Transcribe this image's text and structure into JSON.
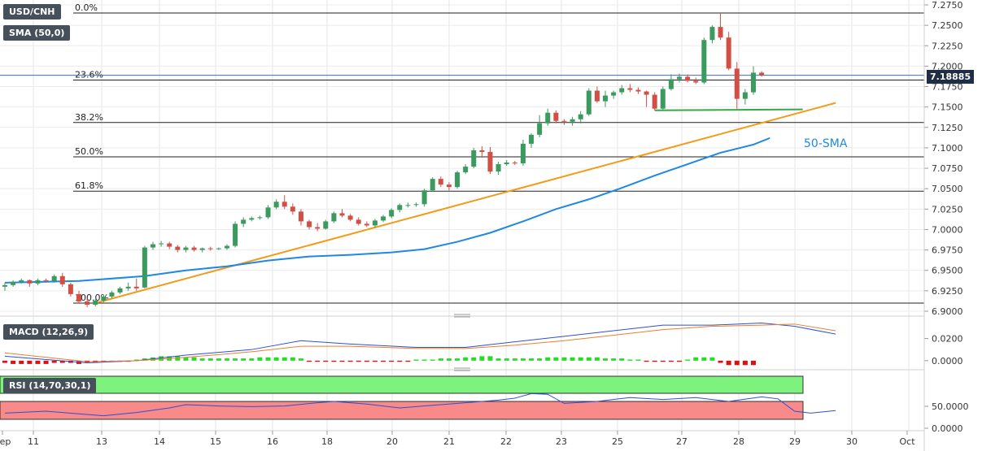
{
  "chart_data": {
    "type": "candlestick",
    "symbol": "USD/CNH",
    "indicator_label": "SMA (50,0)",
    "current_price": "7.18885",
    "annotation": "50-SMA",
    "y_ticks": [
      "7.2750",
      "7.2500",
      "7.2250",
      "7.2000",
      "7.1750",
      "7.1500",
      "7.1250",
      "7.1000",
      "7.0750",
      "7.0500",
      "7.0250",
      "7.0000",
      "6.9750",
      "6.9500",
      "6.9250",
      "6.9000"
    ],
    "ylim": [
      6.9,
      7.275
    ],
    "x_labels": [
      "Sep",
      "11",
      "13",
      "14",
      "15",
      "16",
      "18",
      "20",
      "21",
      "22",
      "23",
      "25",
      "27",
      "28",
      "29",
      "30",
      "Oct"
    ],
    "fib_levels": [
      {
        "label": "0.0%",
        "value": 7.265
      },
      {
        "label": "23.6%",
        "value": 7.183
      },
      {
        "label": "38.2%",
        "value": 7.131
      },
      {
        "label": "50.0%",
        "value": 7.089
      },
      {
        "label": "61.8%",
        "value": 7.047
      },
      {
        "label": "100.0%",
        "value": 6.91
      }
    ],
    "candles": [
      [
        6.93,
        6.935,
        6.925,
        6.932
      ],
      [
        6.932,
        6.938,
        6.93,
        6.936
      ],
      [
        6.936,
        6.94,
        6.934,
        6.938
      ],
      [
        6.938,
        6.939,
        6.93,
        6.934
      ],
      [
        6.934,
        6.94,
        6.932,
        6.938
      ],
      [
        6.938,
        6.94,
        6.935,
        6.937
      ],
      [
        6.937,
        6.945,
        6.935,
        6.943
      ],
      [
        6.943,
        6.947,
        6.93,
        6.933
      ],
      [
        6.933,
        6.935,
        6.918,
        6.921
      ],
      [
        6.921,
        6.925,
        6.91,
        6.912
      ],
      [
        6.912,
        6.916,
        6.905,
        6.908
      ],
      [
        6.908,
        6.915,
        6.906,
        6.913
      ],
      [
        6.913,
        6.92,
        6.911,
        6.918
      ],
      [
        6.918,
        6.925,
        6.916,
        6.923
      ],
      [
        6.923,
        6.93,
        6.921,
        6.928
      ],
      [
        6.928,
        6.935,
        6.925,
        6.93
      ],
      [
        6.93,
        6.94,
        6.925,
        6.928
      ],
      [
        6.929,
        6.98,
        6.928,
        6.978
      ],
      [
        6.978,
        6.985,
        6.975,
        6.982
      ],
      [
        6.982,
        6.986,
        6.979,
        6.983
      ],
      [
        6.983,
        6.985,
        6.976,
        6.979
      ],
      [
        6.979,
        6.981,
        6.972,
        6.975
      ],
      [
        6.975,
        6.98,
        6.972,
        6.978
      ],
      [
        6.978,
        6.98,
        6.973,
        6.975
      ],
      [
        6.975,
        6.978,
        6.972,
        6.977
      ],
      [
        6.977,
        6.979,
        6.974,
        6.976
      ],
      [
        6.976,
        6.978,
        6.975,
        6.977
      ],
      [
        6.977,
        6.982,
        6.975,
        6.98
      ],
      [
        6.98,
        7.01,
        6.978,
        7.007
      ],
      [
        7.007,
        7.015,
        7.003,
        7.012
      ],
      [
        7.012,
        7.016,
        7.01,
        7.014
      ],
      [
        7.014,
        7.017,
        7.012,
        7.015
      ],
      [
        7.015,
        7.03,
        7.013,
        7.027
      ],
      [
        7.027,
        7.037,
        7.025,
        7.034
      ],
      [
        7.034,
        7.042,
        7.025,
        7.028
      ],
      [
        7.028,
        7.032,
        7.018,
        7.022
      ],
      [
        7.022,
        7.025,
        7.005,
        7.01
      ],
      [
        7.01,
        7.012,
        7.0,
        7.003
      ],
      [
        7.003,
        7.008,
        6.998,
        7.001
      ],
      [
        7.001,
        7.012,
        7.0,
        7.01
      ],
      [
        7.01,
        7.022,
        7.008,
        7.02
      ],
      [
        7.02,
        7.025,
        7.015,
        7.017
      ],
      [
        7.017,
        7.019,
        7.01,
        7.012
      ],
      [
        7.012,
        7.015,
        7.005,
        7.007
      ],
      [
        7.007,
        7.01,
        7.003,
        7.005
      ],
      [
        7.005,
        7.013,
        7.002,
        7.011
      ],
      [
        7.011,
        7.018,
        7.009,
        7.016
      ],
      [
        7.016,
        7.026,
        7.014,
        7.024
      ],
      [
        7.024,
        7.032,
        7.021,
        7.03
      ],
      [
        7.03,
        7.033,
        7.027,
        7.03
      ],
      [
        7.03,
        7.033,
        7.028,
        7.031
      ],
      [
        7.031,
        7.05,
        7.028,
        7.048
      ],
      [
        7.048,
        7.064,
        7.046,
        7.062
      ],
      [
        7.062,
        7.065,
        7.052,
        7.055
      ],
      [
        7.055,
        7.058,
        7.048,
        7.052
      ],
      [
        7.052,
        7.072,
        7.05,
        7.07
      ],
      [
        7.07,
        7.08,
        7.068,
        7.077
      ],
      [
        7.077,
        7.1,
        7.075,
        7.097
      ],
      [
        7.097,
        7.102,
        7.088,
        7.095
      ],
      [
        7.095,
        7.101,
        7.068,
        7.071
      ],
      [
        7.071,
        7.083,
        7.067,
        7.08
      ],
      [
        7.08,
        7.085,
        7.078,
        7.082
      ],
      [
        7.082,
        7.084,
        7.079,
        7.081
      ],
      [
        7.081,
        7.11,
        7.078,
        7.105
      ],
      [
        7.105,
        7.118,
        7.1,
        7.116
      ],
      [
        7.116,
        7.14,
        7.113,
        7.13
      ],
      [
        7.13,
        7.148,
        7.127,
        7.143
      ],
      [
        7.143,
        7.146,
        7.13,
        7.133
      ],
      [
        7.133,
        7.135,
        7.128,
        7.132
      ],
      [
        7.132,
        7.138,
        7.127,
        7.135
      ],
      [
        7.135,
        7.145,
        7.13,
        7.141
      ],
      [
        7.141,
        7.173,
        7.139,
        7.17
      ],
      [
        7.17,
        7.175,
        7.155,
        7.157
      ],
      [
        7.157,
        7.17,
        7.15,
        7.164
      ],
      [
        7.164,
        7.17,
        7.16,
        7.168
      ],
      [
        7.168,
        7.177,
        7.165,
        7.173
      ],
      [
        7.173,
        7.178,
        7.168,
        7.171
      ],
      [
        7.171,
        7.174,
        7.166,
        7.169
      ],
      [
        7.169,
        7.17,
        7.15,
        7.165
      ],
      [
        7.165,
        7.168,
        7.146,
        7.148
      ],
      [
        7.148,
        7.175,
        7.146,
        7.172
      ],
      [
        7.172,
        7.19,
        7.17,
        7.184
      ],
      [
        7.184,
        7.191,
        7.18,
        7.187
      ],
      [
        7.187,
        7.19,
        7.18,
        7.182
      ],
      [
        7.182,
        7.186,
        7.178,
        7.18
      ],
      [
        7.18,
        7.235,
        7.178,
        7.232
      ],
      [
        7.232,
        7.25,
        7.228,
        7.248
      ],
      [
        7.248,
        7.265,
        7.232,
        7.235
      ],
      [
        7.235,
        7.242,
        7.195,
        7.197
      ],
      [
        7.197,
        7.205,
        7.148,
        7.16
      ],
      [
        7.16,
        7.172,
        7.153,
        7.168
      ],
      [
        7.168,
        7.2,
        7.165,
        7.192
      ],
      [
        7.192,
        7.194,
        7.187,
        7.189
      ]
    ],
    "sma50": [
      [
        0,
        6.935
      ],
      [
        9,
        6.937
      ],
      [
        17,
        6.943
      ],
      [
        22,
        6.95
      ],
      [
        27,
        6.955
      ],
      [
        32,
        6.962
      ],
      [
        37,
        6.967
      ],
      [
        42,
        6.969
      ],
      [
        47,
        6.972
      ],
      [
        51,
        6.976
      ],
      [
        55,
        6.985
      ],
      [
        59,
        6.996
      ],
      [
        63,
        7.01
      ],
      [
        67,
        7.025
      ],
      [
        71,
        7.037
      ],
      [
        75,
        7.051
      ],
      [
        79,
        7.066
      ],
      [
        83,
        7.08
      ],
      [
        87,
        7.094
      ],
      [
        91,
        7.104
      ],
      [
        93,
        7.112
      ]
    ],
    "trendline": [
      [
        11,
        6.91
      ],
      [
        101,
        7.155
      ]
    ],
    "support_line": [
      [
        79,
        7.146
      ],
      [
        97,
        7.147
      ]
    ],
    "macd": {
      "label": "MACD (12,26,9)",
      "y_ticks": [
        "0.0200",
        "0.0000"
      ],
      "ylim": [
        -0.006,
        0.038
      ],
      "macd_line": [
        [
          0,
          0.004
        ],
        [
          10,
          -0.002
        ],
        [
          16,
          0.0
        ],
        [
          22,
          0.005
        ],
        [
          30,
          0.01
        ],
        [
          36,
          0.018
        ],
        [
          42,
          0.015
        ],
        [
          50,
          0.012
        ],
        [
          56,
          0.012
        ],
        [
          62,
          0.017
        ],
        [
          68,
          0.022
        ],
        [
          74,
          0.027
        ],
        [
          80,
          0.032
        ],
        [
          86,
          0.032
        ],
        [
          92,
          0.034
        ],
        [
          96,
          0.031
        ],
        [
          101,
          0.024
        ]
      ],
      "signal_line": [
        [
          0,
          0.007
        ],
        [
          10,
          -0.001
        ],
        [
          16,
          0.0
        ],
        [
          22,
          0.003
        ],
        [
          30,
          0.008
        ],
        [
          36,
          0.013
        ],
        [
          42,
          0.013
        ],
        [
          50,
          0.011
        ],
        [
          56,
          0.011
        ],
        [
          62,
          0.014
        ],
        [
          68,
          0.018
        ],
        [
          74,
          0.023
        ],
        [
          80,
          0.028
        ],
        [
          86,
          0.031
        ],
        [
          92,
          0.032
        ],
        [
          96,
          0.033
        ],
        [
          101,
          0.027
        ]
      ],
      "histogram": [
        -0.002,
        -0.003,
        -0.003,
        -0.003,
        -0.003,
        -0.003,
        -0.002,
        -0.002,
        -0.002,
        -0.003,
        -0.002,
        -0.002,
        -0.001,
        -0.001,
        -0.001,
        -0.001,
        0.001,
        0.002,
        0.003,
        0.004,
        0.004,
        0.004,
        0.003,
        0.003,
        0.002,
        0.002,
        0.002,
        0.002,
        0.002,
        0.002,
        0.002,
        0.003,
        0.003,
        0.003,
        0.003,
        0.003,
        0.002,
        -0.001,
        -0.001,
        -0.001,
        -0.001,
        -0.001,
        -0.001,
        -0.001,
        -0.001,
        -0.001,
        -0.001,
        -0.001,
        -0.001,
        -0.001,
        0.001,
        0.001,
        0.001,
        0.002,
        0.002,
        0.002,
        0.003,
        0.003,
        0.004,
        0.004,
        0.002,
        0.002,
        0.002,
        0.002,
        0.002,
        0.002,
        0.003,
        0.003,
        0.003,
        0.003,
        0.003,
        0.003,
        0.003,
        0.002,
        0.002,
        0.002,
        0.001,
        0.001,
        -0.001,
        -0.001,
        -0.001,
        -0.001,
        -0.001,
        0.001,
        0.003,
        0.003,
        0.003,
        -0.002,
        -0.004,
        -0.004,
        -0.004,
        -0.004
      ]
    },
    "rsi": {
      "label": "RSI (14,70,30,1)",
      "y_ticks": [
        "50.0000",
        "0.0000"
      ],
      "ylim": [
        0,
        100
      ],
      "overbought": 70,
      "oversold": 30,
      "values": [
        [
          0,
          52
        ],
        [
          5,
          55
        ],
        [
          9,
          51
        ],
        [
          12,
          48
        ],
        [
          16,
          53
        ],
        [
          20,
          60
        ],
        [
          22,
          65
        ],
        [
          26,
          63
        ],
        [
          30,
          62
        ],
        [
          34,
          63
        ],
        [
          38,
          68
        ],
        [
          40,
          70
        ],
        [
          44,
          66
        ],
        [
          48,
          60
        ],
        [
          52,
          64
        ],
        [
          56,
          68
        ],
        [
          60,
          72
        ],
        [
          62,
          75
        ],
        [
          64,
          82
        ],
        [
          66,
          81
        ],
        [
          68,
          67
        ],
        [
          72,
          70
        ],
        [
          76,
          76
        ],
        [
          80,
          73
        ],
        [
          84,
          76
        ],
        [
          88,
          70
        ],
        [
          92,
          77
        ],
        [
          94,
          74
        ],
        [
          96,
          55
        ],
        [
          98,
          52
        ],
        [
          101,
          56
        ]
      ]
    }
  }
}
